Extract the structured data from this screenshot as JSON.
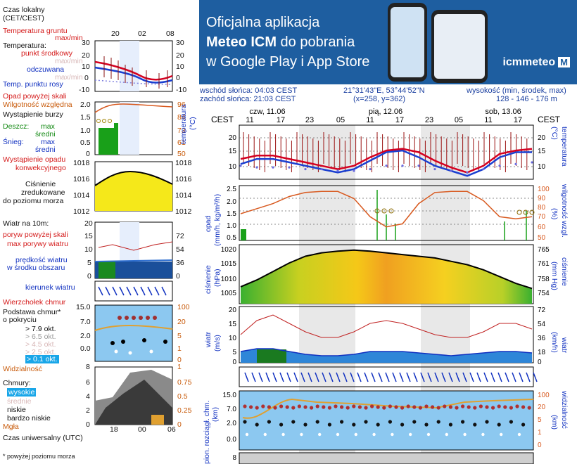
{
  "legend": {
    "local_time": "Czas lokalny",
    "local_time_tz": "(CET/CEST)",
    "ground_temp": "Temperatura gruntu",
    "max_min": "max/min",
    "temperature": "Temperatura:",
    "mid_point": "punkt środkowy",
    "max_min_pale": "max/min",
    "felt": "odczuwana",
    "max_min_pale2": "max/min",
    "dew": "Temp. punktu rosy",
    "precip_above": "Opad powyżej skali",
    "humidity": "Wilgotność względna",
    "storm": "Wystąpienie burzy",
    "rain": "Deszcz:",
    "max": "max",
    "mean": "średni",
    "snow": "Śnieg:",
    "max2": "max",
    "mean2": "średni",
    "convective": "Wystąpienie opadu",
    "convective2": "konwekcyjnego",
    "pressure": "Ciśnienie",
    "pressure2": "zredukowane",
    "pressure3": "do poziomu morza",
    "wind10": "Wiatr na 10m:",
    "gust_above": "poryw powyżej skali",
    "max_gust": "max porywy wiatru",
    "wind_speed": "prędkość wiatru",
    "wind_speed2": "w środku obszaru",
    "wind_dir": "kierunek wiatru",
    "cloud_top": "Wierzchołek chmur",
    "cloud_base": "Podstawa chmur*",
    "coverage": "o pokryciu",
    "ok1": "> 7.9 okt.",
    "ok2": "> 6.5 okt.",
    "ok3": "> 4.5 okt.",
    "ok4": "> 2.5 okt.",
    "ok5": "> 0.1 okt.",
    "visibility": "Widzialność",
    "clouds": "Chmury:",
    "high": "wysokie",
    "mid": "średnie",
    "low": "niskie",
    "very_low": "bardzo niskie",
    "fog": "Mgła",
    "utc": "Czas uniwersalny (UTC)",
    "footnote": "* powyżej poziomu morza"
  },
  "mini": {
    "top_hours": [
      "20",
      "02",
      "08"
    ],
    "bottom_hours": [
      "18",
      "00",
      "06"
    ],
    "temp_ticks_left": [
      "30",
      "20",
      "10",
      "0",
      "-10"
    ],
    "temp_ticks_right": [
      "30",
      "20",
      "10",
      "0",
      "-10"
    ],
    "precip_ticks": [
      "2.0",
      "1.5",
      "1.0",
      "0.5",
      "0"
    ],
    "hum_ticks": [
      "96",
      "84",
      "73",
      "61",
      "50"
    ],
    "press_ticks": [
      "1018",
      "1016",
      "1014",
      "1012"
    ],
    "wind_ticks_left": [
      "20",
      "15",
      "10",
      "5",
      "0"
    ],
    "wind_ticks_right": [
      "72",
      "54",
      "36",
      "18",
      "0"
    ],
    "cloud_ticks_left": [
      "15.0",
      "7.0",
      "2.0",
      "0.0",
      "0.0"
    ],
    "cloud_ticks_right": [
      "100",
      "20",
      "5",
      "1",
      "0"
    ],
    "vis_ticks": [
      "8",
      "6",
      "4",
      "2",
      "0"
    ],
    "cov_ticks": [
      "1",
      "0.75",
      "0.5",
      "0.25",
      "0"
    ]
  },
  "banner": {
    "line1": "Oficjalna aplikacja",
    "line2a": "Meteo ICM",
    "line2b": " do pobrania",
    "line3": "w Google Play i App Store",
    "logo": "icmmeteo",
    "logo_m": "M"
  },
  "info": {
    "sunrise": "wschód słońca: 04:03 CEST",
    "sunset": "zachód słońca: 21:03 CEST",
    "coords": "21°31'43\"E, 53°44'52\"N",
    "grid": "(x=258, y=362)",
    "height_label": "wysokość (min, środek, max)",
    "height": "128 - 146 - 176 m"
  },
  "main": {
    "days": [
      "czw, 11.06",
      "pią, 12.06",
      "sob, 13.06"
    ],
    "tz": "CEST",
    "hours": [
      "11",
      "17",
      "23",
      "05",
      "11",
      "17",
      "23",
      "05",
      "11",
      "17"
    ],
    "temp_label": "temperatura",
    "temp_unit": "(°C)",
    "temp_ticks": [
      "20",
      "15",
      "10"
    ],
    "precip_label": "opad",
    "precip_unit": "(mm/h, kg/m²/h)",
    "precip_ticks": [
      "2.5",
      "2.0",
      "1.5",
      "1.0",
      "0.5"
    ],
    "hum_label": "wilgotność wzgl.",
    "hum_unit": "(%)",
    "hum_ticks": [
      "100",
      "90",
      "80",
      "70",
      "60",
      "50"
    ],
    "press_label": "ciśnienie",
    "press_unit": "(hPa)",
    "press_ticks": [
      "1020",
      "1015",
      "1010",
      "1005"
    ],
    "press_unit_r": "(mm Hg)",
    "press_ticks_r": [
      "765",
      "761",
      "758",
      "754"
    ],
    "wind_label": "wiatr",
    "wind_unit": "(m/s)",
    "wind_ticks": [
      "20",
      "15",
      "10",
      "5",
      "0"
    ],
    "wind_unit_r": "(km/h)",
    "wind_ticks_r": [
      "72",
      "54",
      "36",
      "18",
      "0"
    ],
    "cloud_label": "pion. rozciągł. chm.",
    "cloud_unit": "(km)",
    "cloud_ticks": [
      "15.0",
      "7.0",
      "2.0",
      "0.0"
    ],
    "vis_label": "widzialność",
    "vis_unit": "(km)",
    "vis_ticks": [
      "100",
      "20",
      "5",
      "1",
      "0"
    ],
    "bottom_tick": "8"
  },
  "colors": {
    "temp": "#d40020",
    "felt": "#1a3fd0",
    "dew": "#6a6adf",
    "humidity": "#d85a20",
    "rain": "#19a019",
    "night": "#d9d9d9",
    "sky": "#8cc8f0",
    "banner": "#1e5ea0"
  },
  "chart_data": [
    {
      "type": "line",
      "title": "temperatura",
      "ylabel": "(°C)",
      "ylim": [
        7,
        23
      ],
      "x": [
        "11",
        "14",
        "17",
        "20",
        "23",
        "02",
        "05",
        "08",
        "11",
        "14",
        "17",
        "20",
        "23",
        "02",
        "05",
        "08",
        "11",
        "14",
        "17"
      ],
      "series": [
        {
          "values": [
            13,
            14,
            14,
            13,
            12,
            11,
            10,
            11,
            13.5,
            15.5,
            16,
            15,
            12.5,
            10.5,
            9,
            11,
            14.5,
            15.5,
            16
          ]
        },
        {
          "values": [
            11.5,
            13,
            13,
            12,
            11,
            10,
            9,
            10,
            12.5,
            15,
            15.5,
            13.5,
            11,
            9.5,
            8,
            10,
            13.5,
            15,
            15
          ]
        },
        {
          "values": [
            11,
            10.5,
            10.5,
            10.5,
            10,
            10,
            9.5,
            9.5,
            10,
            11,
            11,
            11,
            10,
            9.5,
            9,
            10,
            11,
            11.5,
            12
          ]
        }
      ]
    },
    {
      "type": "line",
      "title": "wilgotność wzgl.",
      "ylabel": "(%)",
      "ylim": [
        50,
        100
      ],
      "x": [
        "11",
        "14",
        "17",
        "20",
        "23",
        "02",
        "05",
        "08",
        "11",
        "14",
        "17",
        "20",
        "23",
        "02",
        "05",
        "08",
        "11",
        "14",
        "17"
      ],
      "series": [
        {
          "values": [
            75,
            80,
            85,
            92,
            96,
            97,
            97,
            90,
            72,
            62,
            65,
            85,
            96,
            97,
            97,
            88,
            72,
            70,
            72
          ]
        }
      ]
    },
    {
      "type": "area",
      "title": "ciśnienie",
      "ylabel": "(hPa)",
      "ylim": [
        1004,
        1021
      ],
      "x": [
        "11",
        "14",
        "17",
        "20",
        "23",
        "02",
        "05",
        "08",
        "11",
        "14",
        "17",
        "20",
        "23",
        "02",
        "05",
        "08",
        "11",
        "14",
        "17"
      ],
      "series": [
        {
          "values": [
            1009,
            1011,
            1013.5,
            1016,
            1018,
            1019,
            1019.5,
            1019.8,
            1019.5,
            1019,
            1018.5,
            1018,
            1017.5,
            1016.5,
            1015.5,
            1014,
            1012,
            1010,
            1008.5
          ]
        }
      ]
    },
    {
      "type": "line",
      "title": "wiatr",
      "ylabel": "(m/s)",
      "ylim": [
        0,
        20
      ],
      "x": [
        "11",
        "14",
        "17",
        "20",
        "23",
        "02",
        "05",
        "08",
        "11",
        "14",
        "17",
        "20",
        "23",
        "02",
        "05",
        "08",
        "11",
        "14",
        "17"
      ],
      "series": [
        {
          "values": [
            4,
            5,
            5,
            4,
            3,
            2.5,
            2.5,
            3,
            4,
            4,
            4,
            3.5,
            3,
            2.5,
            3,
            3.5,
            4,
            4,
            3.5
          ]
        },
        {
          "values": [
            10,
            15,
            17,
            14,
            11,
            9,
            9,
            11,
            14,
            15,
            14,
            12,
            10,
            9,
            9,
            11,
            14,
            14,
            12
          ]
        }
      ]
    }
  ]
}
